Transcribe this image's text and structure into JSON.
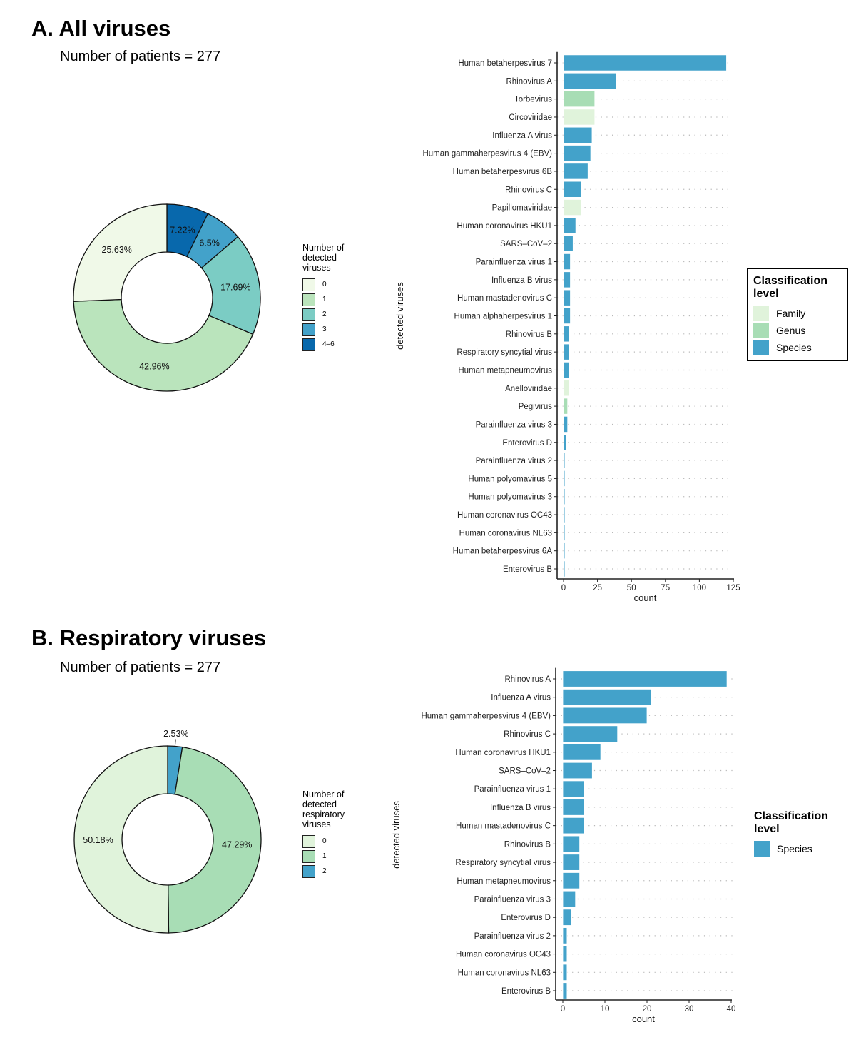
{
  "panels": {
    "a": {
      "title": "A. All viruses",
      "subtitle": "Number of patients = 277"
    },
    "b": {
      "title": "B. Respiratory viruses",
      "subtitle": "Number of patients = 277"
    }
  },
  "chart_data": [
    {
      "id": "pie_a",
      "type": "pie",
      "donut": true,
      "legend_title": "Number of detected viruses",
      "legend_title_lines": [
        "Number of",
        "detected",
        "viruses"
      ],
      "legend_position": "right",
      "slices": [
        {
          "label": "0",
          "value": 25.63,
          "text": "25.63%",
          "color": "#f0f9e8"
        },
        {
          "label": "1",
          "value": 42.96,
          "text": "42.96%",
          "color": "#bae4bc"
        },
        {
          "label": "2",
          "value": 17.69,
          "text": "17.69%",
          "color": "#7bccc4"
        },
        {
          "label": "3",
          "value": 6.5,
          "text": "6.5%",
          "color": "#43a2ca"
        },
        {
          "label": "4–6",
          "value": 7.22,
          "text": "7.22%",
          "color": "#0868ac"
        }
      ]
    },
    {
      "id": "bar_a",
      "type": "bar",
      "orientation": "horizontal",
      "xlabel": "count",
      "ylabel": "detected viruses",
      "xlim": [
        0,
        125
      ],
      "xticks": [
        0,
        25,
        50,
        75,
        100,
        125
      ],
      "grid": "dotted horizontal",
      "legend_title": "Classification level",
      "legend_title_lines": [
        "Classification",
        "level"
      ],
      "legend_position": "right",
      "legend": [
        {
          "label": "Family",
          "color": "#e0f3db"
        },
        {
          "label": "Genus",
          "color": "#a8ddb5"
        },
        {
          "label": "Species",
          "color": "#43a2ca"
        }
      ],
      "categories": [
        "Human betaherpesvirus 7",
        "Rhinovirus A",
        "Torbevirus",
        "Circoviridae",
        "Influenza A virus",
        "Human gammaherpesvirus 4 (EBV)",
        "Human betaherpesvirus 6B",
        "Rhinovirus C",
        "Papillomaviridae",
        "Human coronavirus HKU1",
        "SARS–CoV–2",
        "Parainfluenza virus 1",
        "Influenza B virus",
        "Human mastadenovirus C",
        "Human alphaherpesvirus 1",
        "Rhinovirus B",
        "Respiratory syncytial virus",
        "Human metapneumovirus",
        "Anelloviridae",
        "Pegivirus",
        "Parainfluenza virus 3",
        "Enterovirus D",
        "Parainfluenza virus 2",
        "Human polyomavirus 5",
        "Human polyomavirus 3",
        "Human coronavirus OC43",
        "Human coronavirus NL63",
        "Human betaherpesvirus 6A",
        "Enterovirus B"
      ],
      "values": [
        120,
        39,
        23,
        23,
        21,
        20,
        18,
        13,
        13,
        9,
        7,
        5,
        5,
        5,
        5,
        4,
        4,
        4,
        4,
        3,
        3,
        2,
        1,
        1,
        1,
        1,
        1,
        1,
        1
      ],
      "levels": [
        "Species",
        "Species",
        "Genus",
        "Family",
        "Species",
        "Species",
        "Species",
        "Species",
        "Family",
        "Species",
        "Species",
        "Species",
        "Species",
        "Species",
        "Species",
        "Species",
        "Species",
        "Species",
        "Family",
        "Genus",
        "Species",
        "Species",
        "Species",
        "Species",
        "Species",
        "Species",
        "Species",
        "Species",
        "Species"
      ]
    },
    {
      "id": "pie_b",
      "type": "pie",
      "donut": true,
      "legend_title": "Number of detected respiratory viruses",
      "legend_title_lines": [
        "Number of",
        "detected",
        "respiratory",
        "viruses"
      ],
      "legend_position": "right",
      "slices": [
        {
          "label": "0",
          "value": 50.18,
          "text": "50.18%",
          "color": "#e0f3db"
        },
        {
          "label": "1",
          "value": 47.29,
          "text": "47.29%",
          "color": "#a8ddb5"
        },
        {
          "label": "2",
          "value": 2.53,
          "text": "2.53%",
          "color": "#43a2ca"
        }
      ]
    },
    {
      "id": "bar_b",
      "type": "bar",
      "orientation": "horizontal",
      "xlabel": "count",
      "ylabel": "detected viruses",
      "xlim": [
        0,
        40
      ],
      "xticks": [
        0,
        10,
        20,
        30,
        40
      ],
      "grid": "dotted horizontal",
      "legend_title": "Classification level",
      "legend_title_lines": [
        "Classification",
        "level"
      ],
      "legend_position": "right",
      "legend": [
        {
          "label": "Species",
          "color": "#43a2ca"
        }
      ],
      "categories": [
        "Rhinovirus A",
        "Influenza A virus",
        "Human gammaherpesvirus 4 (EBV)",
        "Rhinovirus C",
        "Human coronavirus HKU1",
        "SARS–CoV–2",
        "Parainfluenza virus 1",
        "Influenza B virus",
        "Human mastadenovirus C",
        "Rhinovirus B",
        "Respiratory syncytial virus",
        "Human metapneumovirus",
        "Parainfluenza virus 3",
        "Enterovirus D",
        "Parainfluenza virus 2",
        "Human coronavirus OC43",
        "Human coronavirus NL63",
        "Enterovirus B"
      ],
      "values": [
        39,
        21,
        20,
        13,
        9,
        7,
        5,
        5,
        5,
        4,
        4,
        4,
        3,
        2,
        1,
        1,
        1,
        1
      ],
      "levels": [
        "Species",
        "Species",
        "Species",
        "Species",
        "Species",
        "Species",
        "Species",
        "Species",
        "Species",
        "Species",
        "Species",
        "Species",
        "Species",
        "Species",
        "Species",
        "Species",
        "Species",
        "Species"
      ]
    }
  ]
}
